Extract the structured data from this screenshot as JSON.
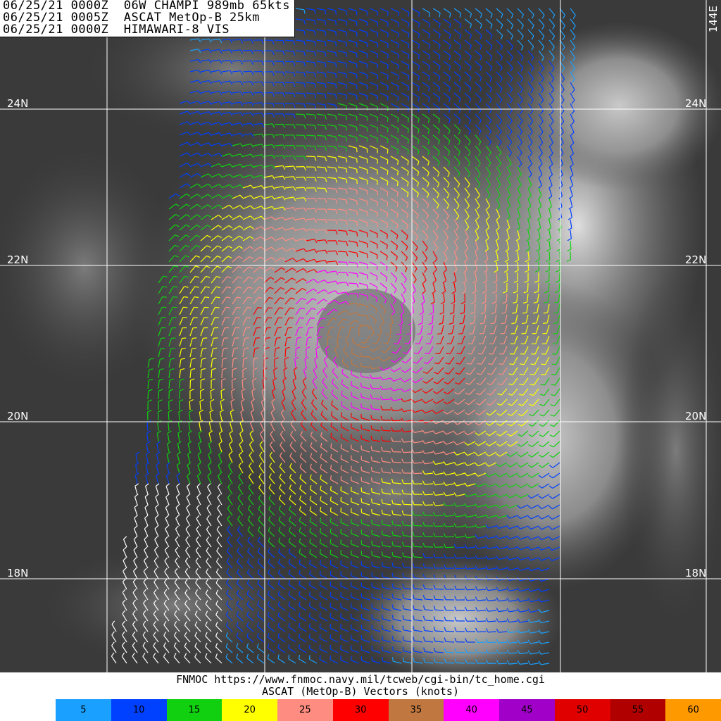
{
  "header": {
    "line1": "06/25/21 0000Z  06W CHAMPI 989mb 65kts",
    "line2": "06/25/21 0005Z  ASCAT MetOp-B 25km",
    "line3": "06/25/21 0000Z  HIMAWARI-8 VIS"
  },
  "grid": {
    "lon_label": "144E",
    "lat_labels": [
      "24N",
      "22N",
      "20N",
      "18N"
    ]
  },
  "footer": {
    "line1": "FNMOC https://www.fnmoc.navy.mil/tcweb/cgi-bin/tc_home.cgi",
    "line2": "ASCAT (MetOp-B) Vectors (knots)"
  },
  "legend": [
    {
      "label": "5",
      "color": "#1aa0ff"
    },
    {
      "label": "10",
      "color": "#0040ff"
    },
    {
      "label": "15",
      "color": "#10d010"
    },
    {
      "label": "20",
      "color": "#ffff00"
    },
    {
      "label": "25",
      "color": "#ff8c80"
    },
    {
      "label": "30",
      "color": "#ff0000"
    },
    {
      "label": "35",
      "color": "#c07840"
    },
    {
      "label": "40",
      "color": "#ff00ff"
    },
    {
      "label": "45",
      "color": "#a000c8"
    },
    {
      "label": "50",
      "color": "#e00000"
    },
    {
      "label": "55",
      "color": "#b00000"
    },
    {
      "label": "60",
      "color": "#ff9900"
    }
  ],
  "storm": {
    "name": "CHAMPI",
    "pressure": "989mb",
    "intensity": "65kts"
  }
}
